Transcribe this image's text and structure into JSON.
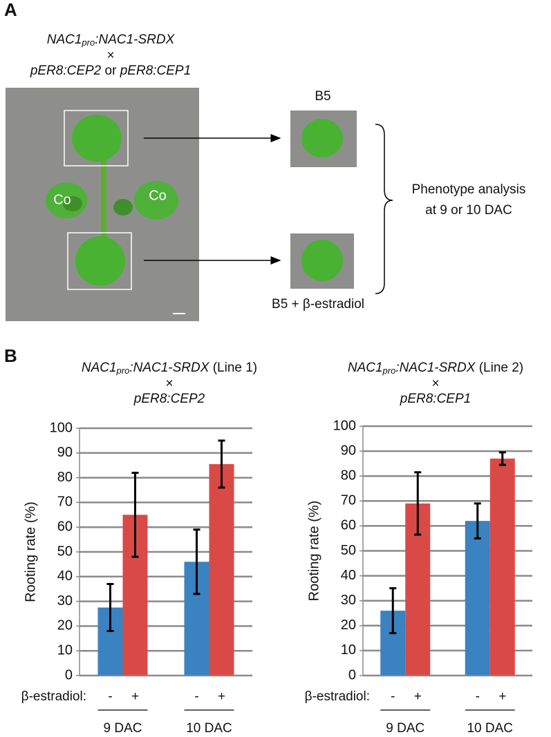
{
  "panel_a": {
    "label": "A",
    "title": {
      "gene": "NAC1",
      "subscript": "pro",
      "rest": ":NAC1-SRDX",
      "cross": "×",
      "partner_1": "pER8:CEP2",
      "conjunction": "or",
      "partner_2": "pER8:CEP1"
    },
    "cotyledon_labels": [
      "Co",
      "Co"
    ],
    "control_label": "B5",
    "treatment_label": "B5 + β-estradiol",
    "analysis": [
      "Phenotype analysis",
      "at 9 or 10 DAC"
    ]
  },
  "panel_b": {
    "label": "B"
  },
  "chart_data": [
    {
      "type": "bar",
      "title": {
        "gene": "NAC1",
        "subscript": "pro",
        "rest": ":NAC1-SRDX",
        "line": " (Line 1)",
        "cross": "×",
        "partner": "pER8:CEP2"
      },
      "y_label": "Rooting rate (%)",
      "x_label": "β-estradiol:",
      "categories": [
        "9 DAC",
        "10 DAC"
      ],
      "series": [
        {
          "name": "-",
          "color": "#3a82c0",
          "values": [
            27.5,
            46
          ],
          "errors": [
            9.5,
            13
          ]
        },
        {
          "name": "+",
          "color": "#d94a47",
          "values": [
            65,
            85.5
          ],
          "errors": [
            17,
            9.5
          ]
        }
      ],
      "ylim": [
        0,
        100
      ],
      "yticks": [
        0,
        10,
        20,
        30,
        40,
        50,
        60,
        70,
        80,
        90,
        100
      ],
      "grid": true
    },
    {
      "type": "bar",
      "title": {
        "gene": "NAC1",
        "subscript": "pro",
        "rest": ":NAC1-SRDX",
        "line": " (Line 2)",
        "cross": "×",
        "partner": "pER8:CEP1"
      },
      "y_label": "Rooting rate (%)",
      "x_label": "β-estradiol:",
      "categories": [
        "9 DAC",
        "10 DAC"
      ],
      "series": [
        {
          "name": "-",
          "color": "#3a82c0",
          "values": [
            26,
            62
          ],
          "errors": [
            9,
            7
          ]
        },
        {
          "name": "+",
          "color": "#d94a47",
          "values": [
            69,
            87
          ],
          "errors": [
            12.5,
            2.5
          ]
        }
      ],
      "ylim": [
        0,
        100
      ],
      "yticks": [
        0,
        10,
        20,
        30,
        40,
        50,
        60,
        70,
        80,
        90,
        100
      ],
      "grid": true
    }
  ]
}
